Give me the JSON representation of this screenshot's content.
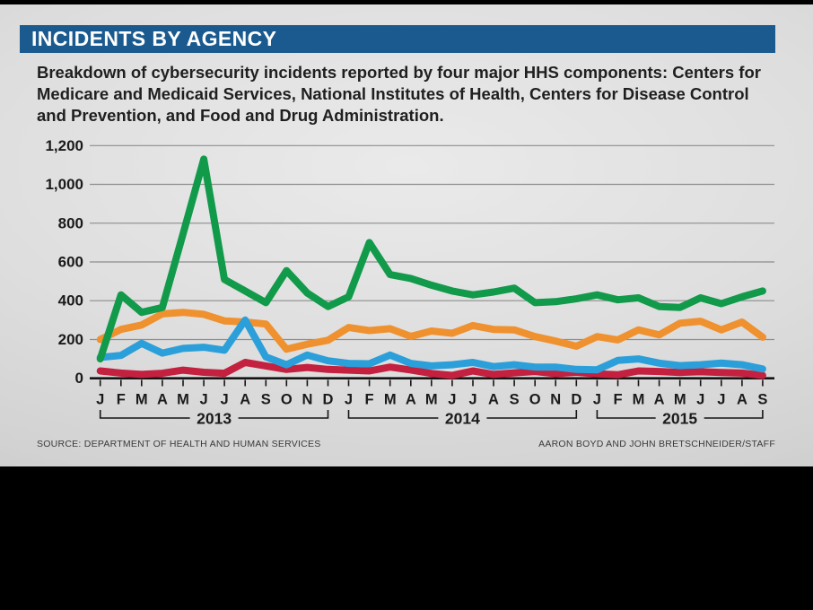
{
  "header": {
    "title": "INCIDENTS BY AGENCY"
  },
  "subtitle": "Breakdown of cybersecurity incidents reported by four major HHS components: Centers for Medicare and Medicaid Services, National Institutes of Health, Centers for Disease Control and Prevention, and Food and Drug Administration.",
  "footer": {
    "source": "SOURCE: DEPARTMENT OF HEALTH AND HUMAN SERVICES",
    "credit": "AARON BOYD AND JOHN BRETSCHNEIDER/STAFF"
  },
  "colors": {
    "header_bar": "#1a5a8e",
    "panel_background": "#d9d9d9",
    "axis": "#141414",
    "gridline": "#8d8d8d",
    "green_line": "#129a4b",
    "orange_line": "#ef912e",
    "blue_line": "#2b9fd9",
    "red_line": "#c4203f"
  },
  "chart_data": {
    "type": "line",
    "title": "INCIDENTS BY AGENCY",
    "xlabel": "",
    "ylabel": "",
    "ylim": [
      0,
      1200
    ],
    "grid": true,
    "legend_position": "none",
    "y_ticks": [
      "1,200",
      "1,000",
      "800",
      "600",
      "400",
      "200",
      "0"
    ],
    "y_tick_values": [
      1200,
      1000,
      800,
      600,
      400,
      200,
      0
    ],
    "x_months": [
      "J",
      "F",
      "M",
      "A",
      "M",
      "J",
      "J",
      "A",
      "S",
      "O",
      "N",
      "D",
      "J",
      "F",
      "M",
      "A",
      "M",
      "J",
      "J",
      "A",
      "S",
      "O",
      "N",
      "D",
      "J",
      "F",
      "M",
      "A",
      "M",
      "J",
      "J",
      "A",
      "S"
    ],
    "year_groups": [
      {
        "label": "2013",
        "start": 0,
        "end": 11
      },
      {
        "label": "2014",
        "start": 12,
        "end": 23
      },
      {
        "label": "2015",
        "start": 24,
        "end": 32
      }
    ],
    "series": [
      {
        "name": "orange-series",
        "color": "#ef912e",
        "values": [
          200,
          252,
          275,
          332,
          340,
          330,
          296,
          290,
          280,
          150,
          176,
          196,
          262,
          246,
          256,
          216,
          244,
          232,
          272,
          252,
          250,
          215,
          192,
          165,
          215,
          198,
          250,
          224,
          284,
          294,
          250,
          290,
          212
        ]
      },
      {
        "name": "red-series",
        "color": "#c4203f",
        "values": [
          38,
          27,
          20,
          26,
          42,
          31,
          26,
          82,
          64,
          46,
          56,
          46,
          42,
          38,
          58,
          43,
          25,
          15,
          38,
          20,
          28,
          35,
          24,
          31,
          23,
          18,
          38,
          35,
          30,
          34,
          30,
          27,
          15
        ]
      },
      {
        "name": "blue-series",
        "color": "#2b9fd9",
        "values": [
          108,
          118,
          180,
          130,
          154,
          160,
          145,
          300,
          110,
          70,
          120,
          90,
          77,
          75,
          120,
          77,
          64,
          70,
          82,
          60,
          70,
          58,
          58,
          46,
          44,
          92,
          100,
          78,
          65,
          70,
          78,
          70,
          48
        ]
      },
      {
        "name": "green-series",
        "color": "#129a4b",
        "values": [
          100,
          430,
          340,
          365,
          745,
          1130,
          510,
          450,
          390,
          555,
          440,
          370,
          420,
          700,
          535,
          515,
          480,
          450,
          430,
          445,
          465,
          390,
          395,
          410,
          430,
          405,
          415,
          370,
          365,
          415,
          385,
          420,
          450
        ]
      }
    ]
  }
}
